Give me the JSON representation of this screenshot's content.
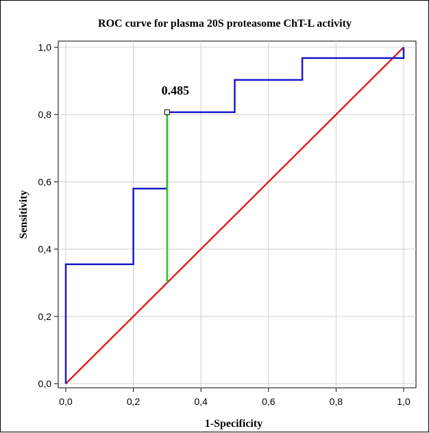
{
  "chart_data": {
    "type": "line",
    "title": "ROC curve for plasma 20S proteasome ChT-L activity",
    "xlabel": "1-Specificity",
    "ylabel": "Sensitivity",
    "xlim": [
      0,
      1
    ],
    "ylim": [
      0,
      1
    ],
    "xticks": [
      "0,0",
      "0,2",
      "0,4",
      "0,6",
      "0,8",
      "1,0"
    ],
    "yticks": [
      "0,0",
      "0,2",
      "0,4",
      "0,6",
      "0,8",
      "1,0"
    ],
    "grid": true,
    "series": [
      {
        "kind": "roc",
        "color": "#1a1acc",
        "x": [
          0.0,
          0.0,
          0.2,
          0.2,
          0.3,
          0.3,
          0.5,
          0.5,
          0.7,
          0.7,
          1.0,
          1.0
        ],
        "y": [
          0.0,
          0.355,
          0.355,
          0.58,
          0.58,
          0.807,
          0.807,
          0.903,
          0.903,
          0.968,
          0.968,
          1.0
        ]
      },
      {
        "kind": "reference",
        "color": "#e02020",
        "x": [
          0.0,
          1.0
        ],
        "y": [
          0.0,
          1.0
        ]
      },
      {
        "kind": "youden",
        "color": "#22cc22",
        "x": [
          0.3,
          0.3
        ],
        "y": [
          0.3,
          0.807
        ]
      }
    ],
    "annotation": {
      "text": "0.485",
      "x": 0.3,
      "y": 0.807
    }
  }
}
